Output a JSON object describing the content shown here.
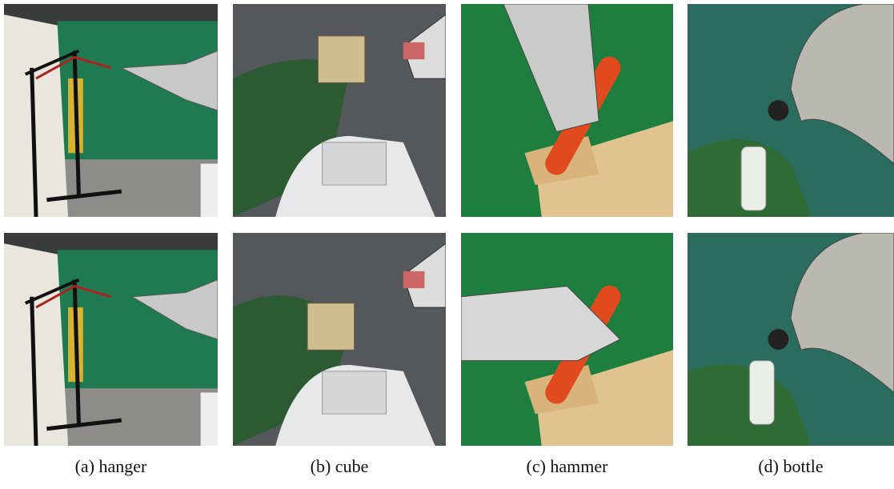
{
  "figure": {
    "panels": [
      {
        "caption": "(a) hanger"
      },
      {
        "caption": "(b) cube"
      },
      {
        "caption": "(c) hammer"
      },
      {
        "caption": "(d) bottle"
      }
    ]
  }
}
